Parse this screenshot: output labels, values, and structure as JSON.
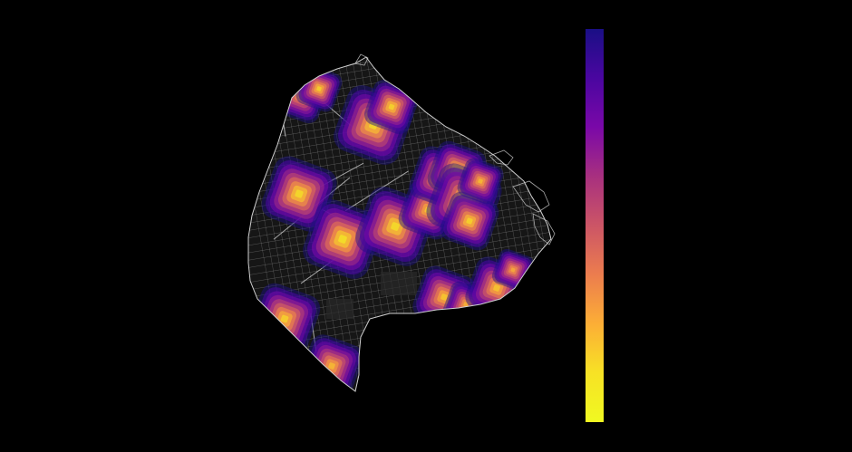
{
  "figure": {
    "background_color": "#000000",
    "street_color": "#bdbdbd",
    "boundary_color": "#d0d0d0"
  },
  "heatmap": {
    "colormap_name": "plasma",
    "colormap_stops": [
      "#1a0f85",
      "#4a06a0",
      "#7a08a8",
      "#a8307f",
      "#cc5566",
      "#ec7d4e",
      "#fcae36",
      "#f7e225",
      "#f0f921"
    ],
    "hotspots": [
      {
        "name": "northwest-tip",
        "intensity": 0.78
      },
      {
        "name": "north-a",
        "intensity": 0.88
      },
      {
        "name": "north-b",
        "intensity": 0.92
      },
      {
        "name": "north-c",
        "intensity": 0.9
      },
      {
        "name": "west",
        "intensity": 0.93
      },
      {
        "name": "center",
        "intensity": 0.96
      },
      {
        "name": "center-east",
        "intensity": 0.94
      },
      {
        "name": "east-center",
        "intensity": 0.86
      },
      {
        "name": "east-cluster-a",
        "intensity": 0.88
      },
      {
        "name": "east-cluster-b",
        "intensity": 0.92
      },
      {
        "name": "east-cluster-c",
        "intensity": 0.95
      },
      {
        "name": "east-cluster-d",
        "intensity": 0.9
      },
      {
        "name": "east-cluster-e",
        "intensity": 0.82
      },
      {
        "name": "southeast-a",
        "intensity": 0.86
      },
      {
        "name": "southeast-b",
        "intensity": 0.8
      },
      {
        "name": "southeast-c",
        "intensity": 0.85
      },
      {
        "name": "southeast-d",
        "intensity": 0.78
      },
      {
        "name": "southwest-a",
        "intensity": 0.88
      },
      {
        "name": "southwest-b",
        "intensity": 0.82
      }
    ]
  },
  "colorbar": {
    "orientation": "vertical",
    "tick_labels": []
  }
}
